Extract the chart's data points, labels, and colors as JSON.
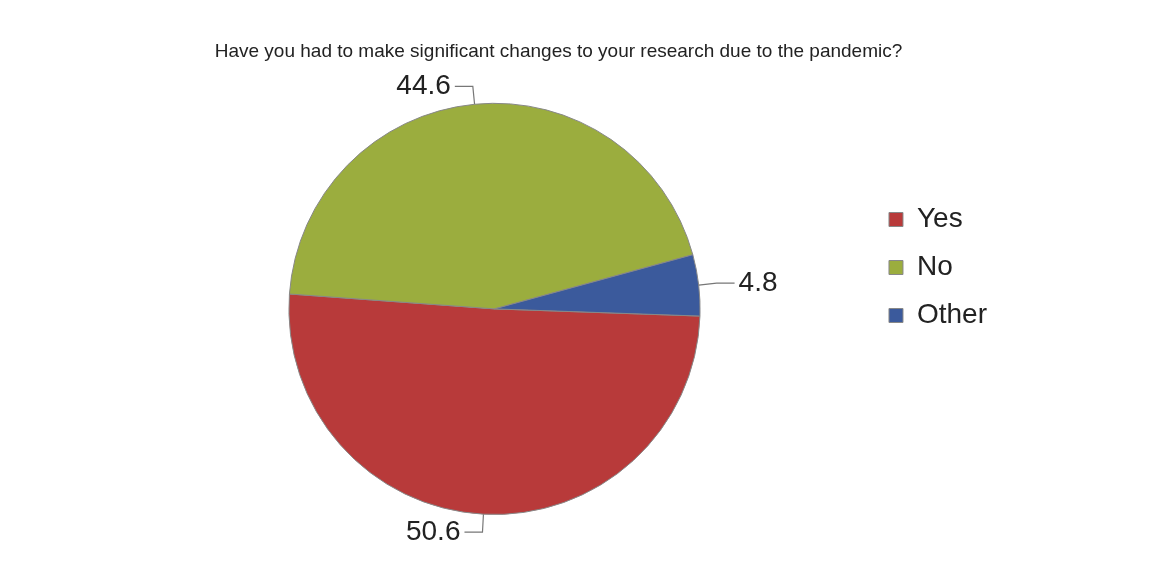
{
  "chart_data": {
    "type": "pie",
    "title": "Have you had to make significant changes to your research due to the pandemic?",
    "categories": [
      "Yes",
      "No",
      "Other"
    ],
    "values": [
      50.6,
      44.6,
      4.8
    ],
    "colors": [
      "#b83a3a",
      "#9bad3e",
      "#3b5a9c"
    ],
    "data_labels": true,
    "legend": "right"
  }
}
